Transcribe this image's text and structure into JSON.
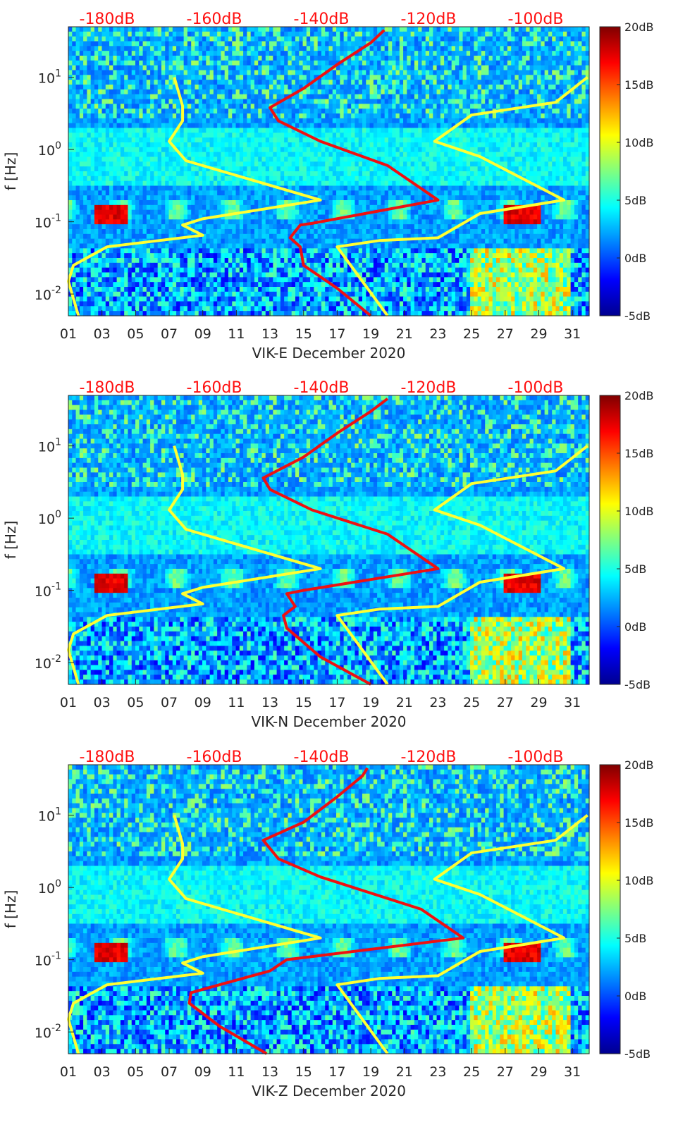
{
  "chart_data": [
    {
      "type": "heatmap",
      "xlabel": "VIK-E December 2020",
      "ylabel": "f [Hz]",
      "x_ticks": [
        "01",
        "03",
        "05",
        "07",
        "09",
        "11",
        "13",
        "15",
        "17",
        "19",
        "21",
        "23",
        "25",
        "27",
        "29",
        "31"
      ],
      "y_ticks": [
        "10^-2",
        "10^-1",
        "10^0",
        "10^1"
      ],
      "ylim": [
        0.005,
        50
      ],
      "y_scale": "log",
      "xlim": [
        1,
        32
      ],
      "top_ticks": [
        "-180dB",
        "-160dB",
        "-140dB",
        "-120dB",
        "-100dB"
      ],
      "colorbar": {
        "ticks": [
          "20dB",
          "15dB",
          "10dB",
          "5dB",
          "0dB",
          "-5dB"
        ],
        "range": [
          -5,
          20
        ],
        "colormap": "jet"
      },
      "series": [
        {
          "color": "#ffff33",
          "points": [
            [
              1.6,
              0.005
            ],
            [
              1.0,
              0.015
            ],
            [
              1.3,
              0.025
            ],
            [
              3.3,
              0.045
            ],
            [
              9.0,
              0.065
            ],
            [
              7.8,
              0.09
            ],
            [
              9.0,
              0.11
            ],
            [
              16.0,
              0.2
            ],
            [
              8.0,
              0.7
            ],
            [
              7.0,
              1.3
            ],
            [
              7.8,
              2.5
            ],
            [
              7.8,
              4.0
            ],
            [
              7.3,
              10.0
            ]
          ]
        },
        {
          "color": "#ffff33",
          "points": [
            [
              20.0,
              0.005
            ],
            [
              17.0,
              0.045
            ],
            [
              19.5,
              0.055
            ],
            [
              23.0,
              0.06
            ],
            [
              25.5,
              0.13
            ],
            [
              30.5,
              0.2
            ],
            [
              25.5,
              0.8
            ],
            [
              22.8,
              1.3
            ],
            [
              25.0,
              3.0
            ],
            [
              30.0,
              4.5
            ],
            [
              31.9,
              10.0
            ]
          ]
        },
        {
          "color": "#ee1111",
          "points": [
            [
              19.0,
              0.005
            ],
            [
              17.0,
              0.012
            ],
            [
              15.0,
              0.025
            ],
            [
              14.8,
              0.045
            ],
            [
              14.2,
              0.06
            ],
            [
              14.8,
              0.09
            ],
            [
              15.5,
              0.095
            ],
            [
              23.0,
              0.2
            ],
            [
              20.0,
              0.6
            ],
            [
              16.0,
              1.3
            ],
            [
              13.5,
              2.5
            ],
            [
              13.0,
              3.8
            ],
            [
              15.0,
              7.0
            ],
            [
              17.0,
              15.0
            ],
            [
              19.0,
              30.0
            ],
            [
              19.8,
              45.0
            ]
          ]
        }
      ]
    },
    {
      "type": "heatmap",
      "xlabel": "VIK-N December 2020",
      "ylabel": "f [Hz]",
      "x_ticks": [
        "01",
        "03",
        "05",
        "07",
        "09",
        "11",
        "13",
        "15",
        "17",
        "19",
        "21",
        "23",
        "25",
        "27",
        "29",
        "31"
      ],
      "y_ticks": [
        "10^-2",
        "10^-1",
        "10^0",
        "10^1"
      ],
      "ylim": [
        0.005,
        50
      ],
      "y_scale": "log",
      "xlim": [
        1,
        32
      ],
      "top_ticks": [
        "-180dB",
        "-160dB",
        "-140dB",
        "-120dB",
        "-100dB"
      ],
      "colorbar": {
        "ticks": [
          "20dB",
          "15dB",
          "10dB",
          "5dB",
          "0dB",
          "-5dB"
        ],
        "range": [
          -5,
          20
        ],
        "colormap": "jet"
      },
      "series": [
        {
          "color": "#ffff33",
          "points": [
            [
              1.6,
              0.005
            ],
            [
              1.0,
              0.015
            ],
            [
              1.3,
              0.025
            ],
            [
              3.3,
              0.045
            ],
            [
              9.0,
              0.065
            ],
            [
              7.8,
              0.09
            ],
            [
              9.0,
              0.11
            ],
            [
              16.0,
              0.2
            ],
            [
              8.0,
              0.7
            ],
            [
              7.0,
              1.3
            ],
            [
              7.8,
              2.5
            ],
            [
              7.8,
              4.0
            ],
            [
              7.3,
              10.0
            ]
          ]
        },
        {
          "color": "#ffff33",
          "points": [
            [
              20.0,
              0.005
            ],
            [
              17.0,
              0.045
            ],
            [
              19.5,
              0.055
            ],
            [
              23.0,
              0.06
            ],
            [
              25.5,
              0.13
            ],
            [
              30.5,
              0.2
            ],
            [
              25.5,
              0.8
            ],
            [
              22.8,
              1.3
            ],
            [
              25.0,
              3.0
            ],
            [
              30.0,
              4.5
            ],
            [
              31.9,
              10.0
            ]
          ]
        },
        {
          "color": "#ee1111",
          "points": [
            [
              19.0,
              0.005
            ],
            [
              16.0,
              0.012
            ],
            [
              14.0,
              0.03
            ],
            [
              13.8,
              0.045
            ],
            [
              14.5,
              0.06
            ],
            [
              14.0,
              0.09
            ],
            [
              15.0,
              0.1
            ],
            [
              23.0,
              0.2
            ],
            [
              20.0,
              0.6
            ],
            [
              15.5,
              1.3
            ],
            [
              13.0,
              2.5
            ],
            [
              12.6,
              3.6
            ],
            [
              15.0,
              7.0
            ],
            [
              17.0,
              15.0
            ],
            [
              19.0,
              30.0
            ],
            [
              20.0,
              45.0
            ]
          ]
        }
      ]
    },
    {
      "type": "heatmap",
      "xlabel": "VIK-Z December 2020",
      "ylabel": "f [Hz]",
      "x_ticks": [
        "01",
        "03",
        "05",
        "07",
        "09",
        "11",
        "13",
        "15",
        "17",
        "19",
        "21",
        "23",
        "25",
        "27",
        "29",
        "31"
      ],
      "y_ticks": [
        "10^-2",
        "10^-1",
        "10^0",
        "10^1"
      ],
      "ylim": [
        0.005,
        50
      ],
      "y_scale": "log",
      "xlim": [
        1,
        32
      ],
      "top_ticks": [
        "-180dB",
        "-160dB",
        "-140dB",
        "-120dB",
        "-100dB"
      ],
      "colorbar": {
        "ticks": [
          "20dB",
          "15dB",
          "10dB",
          "5dB",
          "0dB",
          "-5dB"
        ],
        "range": [
          -5,
          20
        ],
        "colormap": "jet"
      },
      "series": [
        {
          "color": "#ffff33",
          "points": [
            [
              1.6,
              0.005
            ],
            [
              1.0,
              0.015
            ],
            [
              1.3,
              0.025
            ],
            [
              3.3,
              0.045
            ],
            [
              9.0,
              0.065
            ],
            [
              7.8,
              0.09
            ],
            [
              9.0,
              0.11
            ],
            [
              16.0,
              0.2
            ],
            [
              8.0,
              0.7
            ],
            [
              7.0,
              1.3
            ],
            [
              7.8,
              2.5
            ],
            [
              7.8,
              4.0
            ],
            [
              7.3,
              10.0
            ]
          ]
        },
        {
          "color": "#ffff33",
          "points": [
            [
              20.0,
              0.005
            ],
            [
              17.0,
              0.045
            ],
            [
              19.5,
              0.055
            ],
            [
              23.0,
              0.06
            ],
            [
              25.5,
              0.13
            ],
            [
              30.5,
              0.2
            ],
            [
              25.5,
              0.8
            ],
            [
              22.8,
              1.3
            ],
            [
              25.0,
              3.0
            ],
            [
              30.0,
              4.5
            ],
            [
              31.9,
              10.0
            ]
          ]
        },
        {
          "color": "#ee1111",
          "points": [
            [
              12.8,
              0.005
            ],
            [
              10.0,
              0.012
            ],
            [
              8.2,
              0.025
            ],
            [
              8.3,
              0.035
            ],
            [
              10.0,
              0.045
            ],
            [
              13.0,
              0.07
            ],
            [
              14.0,
              0.1
            ],
            [
              24.5,
              0.2
            ],
            [
              22.0,
              0.5
            ],
            [
              16.0,
              1.4
            ],
            [
              13.5,
              2.5
            ],
            [
              12.6,
              4.5
            ],
            [
              15.0,
              8.0
            ],
            [
              17.0,
              18.0
            ],
            [
              18.5,
              35.0
            ],
            [
              18.8,
              45.0
            ]
          ]
        }
      ]
    }
  ]
}
